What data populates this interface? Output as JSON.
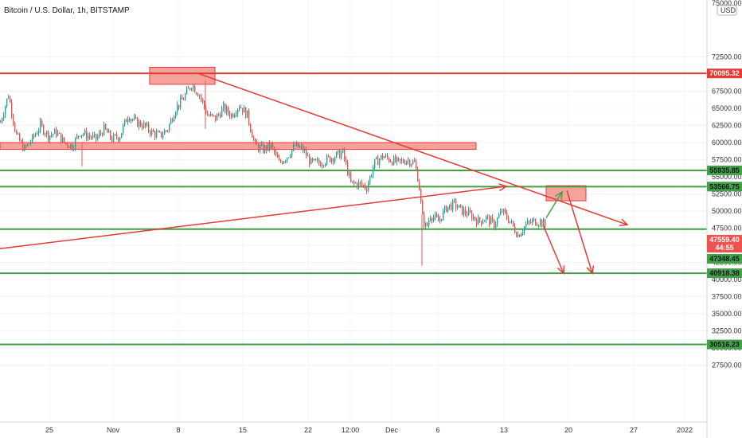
{
  "header": {
    "title": "Bitcoin / U.S. Dollar, 1h, BITSTAMP",
    "currency": "USD",
    "top_label": "75000.00"
  },
  "chart_data": {
    "type": "candlestick",
    "symbol": "Bitcoin / U.S. Dollar",
    "interval": "1h",
    "exchange": "BITSTAMP",
    "currency": "USD",
    "ylim": [
      25000,
      77000
    ],
    "y_ticks": [
      "27500.00",
      "30000.00",
      "32500.00",
      "35000.00",
      "37500.00",
      "40000.00",
      "42500.00",
      "45000.00",
      "47500.00",
      "50000.00",
      "52500.00",
      "55000.00",
      "57500.00",
      "60000.00",
      "62500.00",
      "65000.00",
      "67500.00",
      "72500.00"
    ],
    "x_ticks": [
      "25",
      "Nov",
      "8",
      "15",
      "22",
      "12:00",
      "Dec",
      "6",
      "13",
      "20",
      "27",
      "2022"
    ],
    "price_path": [
      [
        0,
        63000
      ],
      [
        10,
        67000
      ],
      [
        20,
        61000
      ],
      [
        30,
        59000
      ],
      [
        40,
        60500
      ],
      [
        50,
        62500
      ],
      [
        60,
        61000
      ],
      [
        70,
        61500
      ],
      [
        80,
        60000
      ],
      [
        90,
        59500
      ],
      [
        100,
        61500
      ],
      [
        110,
        61000
      ],
      [
        120,
        60500
      ],
      [
        130,
        62000
      ],
      [
        140,
        60500
      ],
      [
        150,
        61000
      ],
      [
        160,
        64000
      ],
      [
        170,
        63000
      ],
      [
        180,
        62500
      ],
      [
        190,
        61500
      ],
      [
        200,
        61000
      ],
      [
        210,
        62000
      ],
      [
        220,
        65000
      ],
      [
        230,
        66500
      ],
      [
        240,
        68500
      ],
      [
        250,
        67000
      ],
      [
        260,
        64000
      ],
      [
        270,
        63500
      ],
      [
        280,
        65000
      ],
      [
        290,
        64000
      ],
      [
        300,
        65500
      ],
      [
        310,
        64000
      ],
      [
        320,
        59500
      ],
      [
        330,
        59000
      ],
      [
        340,
        59500
      ],
      [
        350,
        57000
      ],
      [
        360,
        58000
      ],
      [
        370,
        59500
      ],
      [
        380,
        59000
      ],
      [
        390,
        57000
      ],
      [
        400,
        57000
      ],
      [
        410,
        57500
      ],
      [
        420,
        58000
      ],
      [
        430,
        58500
      ],
      [
        440,
        54000
      ],
      [
        450,
        54000
      ],
      [
        460,
        53500
      ],
      [
        470,
        57000
      ],
      [
        480,
        58000
      ],
      [
        490,
        57500
      ],
      [
        500,
        57000
      ],
      [
        510,
        57500
      ],
      [
        520,
        57000
      ],
      [
        525,
        54500
      ],
      [
        530,
        49000
      ],
      [
        535,
        47500
      ],
      [
        540,
        49500
      ],
      [
        550,
        48500
      ],
      [
        560,
        50500
      ],
      [
        570,
        51000
      ],
      [
        580,
        50000
      ],
      [
        590,
        49500
      ],
      [
        600,
        48500
      ],
      [
        610,
        49000
      ],
      [
        620,
        48000
      ],
      [
        630,
        50000
      ],
      [
        640,
        48500
      ],
      [
        650,
        46500
      ],
      [
        660,
        48000
      ],
      [
        670,
        48500
      ],
      [
        680,
        48500
      ],
      [
        685,
        47559.4
      ]
    ],
    "candles_high_low": [
      {
        "x": 103,
        "high": 60000,
        "low": 56500
      },
      {
        "x": 258,
        "high": 69000,
        "low": 62000
      },
      {
        "x": 530,
        "high": 49500,
        "low": 42000
      }
    ],
    "horizontal_lines": [
      {
        "price": 70095.32,
        "label": "70095.32",
        "color": "#e53935"
      },
      {
        "price": 55935.85,
        "label": "55935.85",
        "color": "#43a047"
      },
      {
        "price": 53566.75,
        "label": "53566.75",
        "color": "#43a047"
      },
      {
        "price": 47348.45,
        "label": "47348.45",
        "color": "#43a047"
      },
      {
        "price": 40918.38,
        "label": "40918.38",
        "color": "#43a047"
      },
      {
        "price": 30516.23,
        "label": "30516.23",
        "color": "#43a047"
      }
    ],
    "last_price": {
      "price": 47559.4,
      "label": "47559.40",
      "countdown": "44:55",
      "color": "#ef5350"
    },
    "zones": [
      {
        "x1": 188,
        "x2": 270,
        "price_top": 71000,
        "price_bottom": 68500,
        "color": "#f28b82"
      },
      {
        "x1": 0,
        "x2": 598,
        "price_top": 60000,
        "price_bottom": 59000,
        "color": "#f28b82"
      },
      {
        "x1": 686,
        "x2": 736,
        "price_top": 53700,
        "price_bottom": 51500,
        "color": "#f28b82"
      }
    ],
    "trendlines": [
      {
        "from": [
          0,
          44500
        ],
        "to": [
          636,
          53600
        ],
        "color": "#e53935",
        "arrow": true
      },
      {
        "from": [
          246,
          70200
        ],
        "to": [
          788,
          48000
        ],
        "color": "#e53935",
        "arrow": true
      },
      {
        "from": [
          682,
          48000
        ],
        "to": [
          708,
          40900
        ],
        "color": "#e53935",
        "arrow": true
      },
      {
        "from": [
          712,
          53000
        ],
        "to": [
          744,
          40900
        ],
        "color": "#e53935",
        "arrow": true
      },
      {
        "from": [
          686,
          49000
        ],
        "to": [
          706,
          52800
        ],
        "color": "#43a047",
        "arrow": true
      }
    ],
    "colors": {
      "up": "#26a69a",
      "down": "#ef5350",
      "resistance": "#e53935",
      "support": "#43a047",
      "grid": "#f0f3fa"
    },
    "grid": true
  }
}
